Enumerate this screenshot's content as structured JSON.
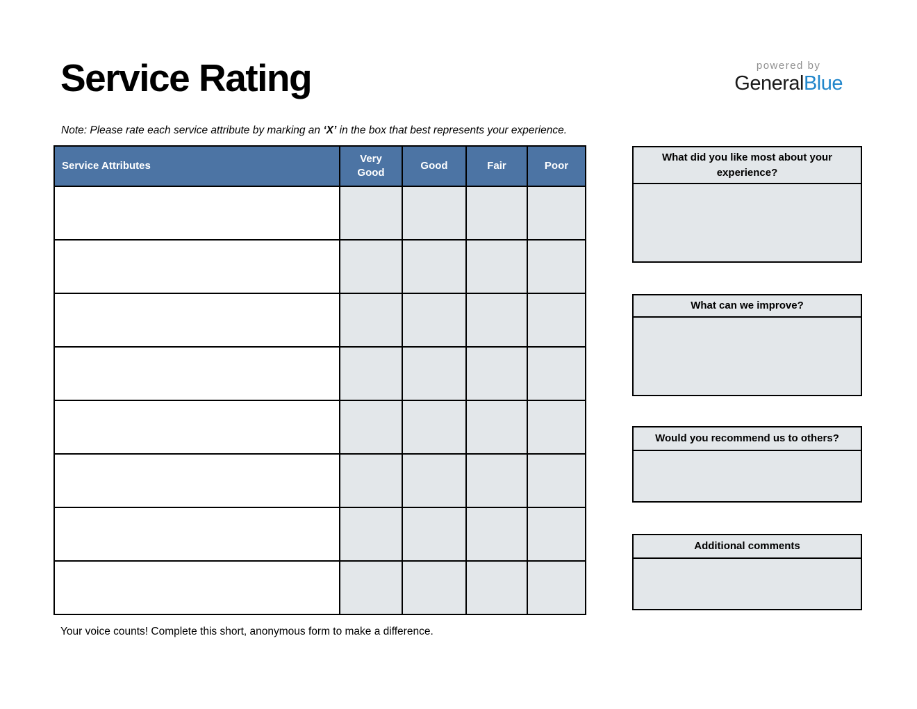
{
  "header": {
    "title": "Service Rating",
    "powered_by": "powered by",
    "brand_dark": "General",
    "brand_blue": "Blue"
  },
  "note": {
    "prefix": "Note: Please rate each service attribute by marking an ",
    "emphasis": "‘X’",
    "suffix": " in the box that best represents your experience."
  },
  "table": {
    "row_count": 8,
    "headers": [
      "Service Attributes",
      "Very Good",
      "Good",
      "Fair",
      "Poor"
    ],
    "header_bg_color": "#4c74a4",
    "cell_bg_color": "#e3e7ea",
    "border_color": "#000000"
  },
  "side_boxes": [
    {
      "title": "What did you like most about your experience?",
      "answer": ""
    },
    {
      "title": "What can we improve?",
      "answer": ""
    },
    {
      "title": "Would you recommend us to others?",
      "answer": ""
    },
    {
      "title": "Additional comments",
      "answer": ""
    }
  ],
  "footer": {
    "text": "Your voice counts! Complete this short, anonymous form to make a difference."
  },
  "colors": {
    "brand_blue_text": "#2186cb",
    "powered_by_gray": "#8f8f8f"
  }
}
